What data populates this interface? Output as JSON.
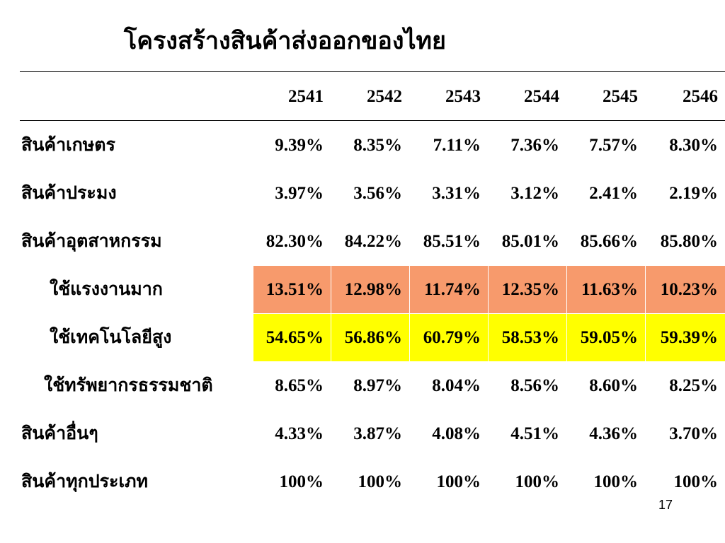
{
  "title": "โครงสร้างสินค้าส่งออกของไทย",
  "table": {
    "header": [
      "2541",
      "2542",
      "2543",
      "2544",
      "2545",
      "2546"
    ],
    "rows": [
      {
        "label": "สินค้าเกษตร",
        "values": [
          "9.39%",
          "8.35%",
          "7.11%",
          "7.36%",
          "7.57%",
          "8.30%"
        ]
      },
      {
        "label": "สินค้าประมง",
        "values": [
          "3.97%",
          "3.56%",
          "3.31%",
          "3.12%",
          "2.41%",
          "2.19%"
        ]
      },
      {
        "label": "สินค้าอุตสาหกรรม",
        "values": [
          "82.30%",
          "84.22%",
          "85.51%",
          "85.01%",
          "85.66%",
          "85.80%"
        ]
      },
      {
        "label": "ใช้แรงงานมาก",
        "values": [
          "13.51%",
          "12.98%",
          "11.74%",
          "12.35%",
          "11.63%",
          "10.23%"
        ]
      },
      {
        "label": "ใช้เทคโนโลยีสูง",
        "values": [
          "54.65%",
          "56.86%",
          "60.79%",
          "58.53%",
          "59.05%",
          "59.39%"
        ]
      },
      {
        "label": "ใช้ทรัพยากรธรรมชาติ",
        "values": [
          "8.65%",
          "8.97%",
          "8.04%",
          "8.56%",
          "8.60%",
          "8.25%"
        ]
      },
      {
        "label": "สินค้าอื่นๆ",
        "values": [
          "4.33%",
          "3.87%",
          "4.08%",
          "4.51%",
          "4.36%",
          "3.70%"
        ]
      },
      {
        "label": "สินค้าทุกประเภท",
        "values": [
          "100%",
          "100%",
          "100%",
          "100%",
          "100%",
          "100%"
        ]
      }
    ]
  },
  "page_number": "17"
}
